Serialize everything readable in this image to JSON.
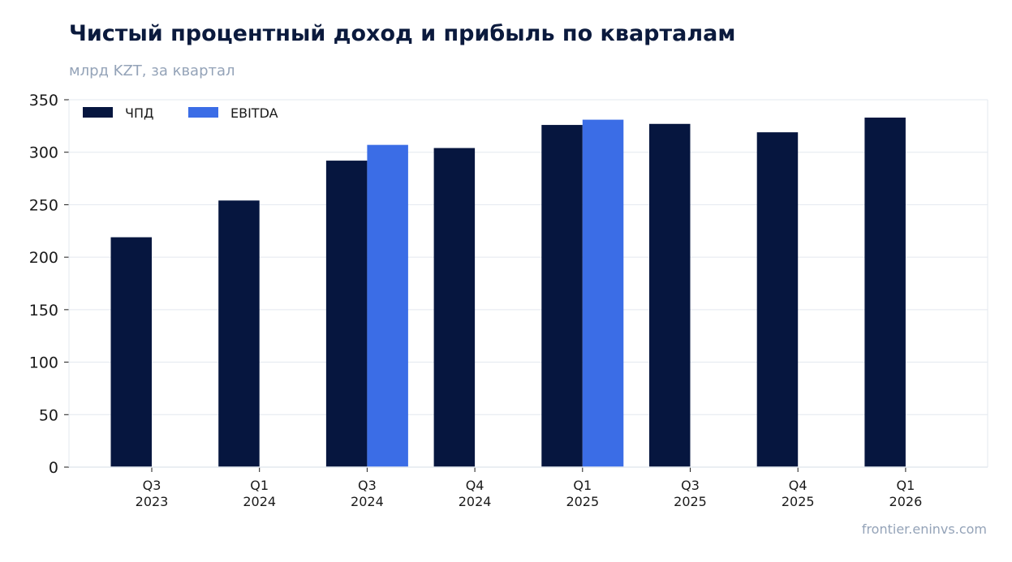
{
  "title": "Чистый процентный доход и прибыль по кварталам",
  "subtitle": "млрд KZT, за квартал",
  "source": "frontier.eninvs.com",
  "colors": {
    "npd": "#06163f",
    "ebitda": "#3b6de6",
    "grid": "#e3e8ef"
  },
  "chart_data": {
    "type": "bar",
    "categories": [
      "Q3\n2023",
      "Q1\n2024",
      "Q3\n2024",
      "Q4\n2024",
      "Q1\n2025",
      "Q3\n2025",
      "Q4\n2025",
      "Q1\n2026"
    ],
    "series": [
      {
        "name": "ЧПД",
        "values": [
          219,
          254,
          292,
          304,
          326,
          327,
          319,
          333
        ]
      },
      {
        "name": "EBITDA",
        "values": [
          null,
          null,
          307,
          null,
          331,
          null,
          null,
          null
        ]
      }
    ],
    "ylim": [
      0,
      350
    ],
    "yticks": [
      0,
      50,
      100,
      150,
      200,
      250,
      300,
      350
    ],
    "grid": true,
    "legend": "top-left"
  }
}
